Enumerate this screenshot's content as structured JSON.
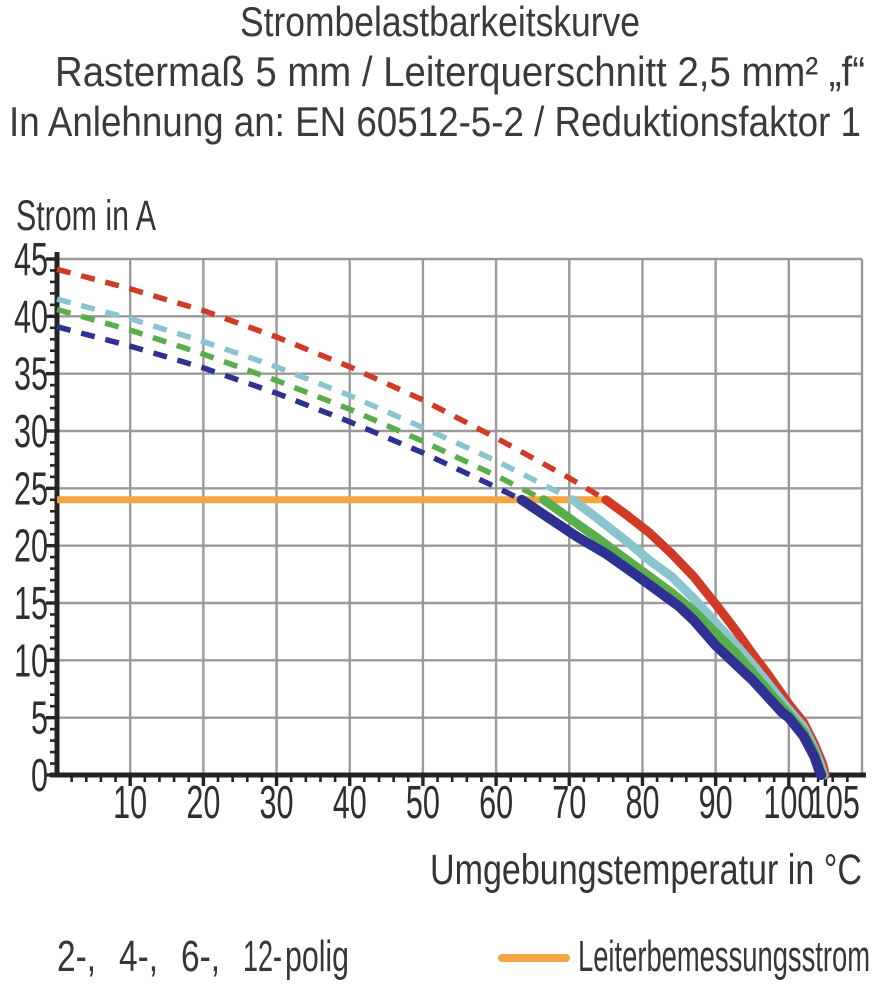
{
  "title": {
    "line1": "Strombelastbarkeitskurve",
    "line2": "Rastermaß 5 mm / Leiterquerschnitt 2,5 mm² „f“",
    "line3": "In Anlehnung an: EN 60512-5-2 / Reduktionsfaktor 1"
  },
  "chart_data": {
    "type": "line",
    "title": "Strombelastbarkeitskurve",
    "xlabel": "Umgebungstemperatur in °C",
    "ylabel": "Strom in A",
    "xlim": [
      0,
      110
    ],
    "ylim": [
      0,
      45
    ],
    "x_tick_labels": [
      10,
      20,
      30,
      40,
      50,
      60,
      70,
      80,
      90,
      100,
      105
    ],
    "y_tick_labels": [
      0,
      5,
      10,
      15,
      20,
      25,
      30,
      35,
      40,
      45
    ],
    "grid": "on",
    "grid_step": {
      "x": 10,
      "y": 5
    },
    "minor_tick_step": {
      "x": 2,
      "y": 1
    },
    "colors": {
      "grid": "#9a9a9a",
      "axis": "#242424",
      "tick_text": "#2b2b2b"
    },
    "rated_current": {
      "label": "Leiterbemessungsstrom",
      "value_a": 24,
      "x_start": 0,
      "x_end": 75,
      "color": "#f4a440"
    },
    "series": [
      {
        "name": "2-polig",
        "color": "#d23a28",
        "dashed": [
          [
            0,
            44.1
          ],
          [
            10,
            42.4
          ],
          [
            20,
            40.5
          ],
          [
            30,
            38.2
          ],
          [
            40,
            35.6
          ],
          [
            50,
            32.7
          ],
          [
            60,
            29.4
          ],
          [
            70,
            25.9
          ],
          [
            75,
            24
          ]
        ],
        "solid": [
          [
            75,
            24
          ],
          [
            78,
            22.6
          ],
          [
            81,
            21.1
          ],
          [
            84,
            19.3
          ],
          [
            87,
            17.3
          ],
          [
            90,
            14.9
          ],
          [
            93,
            12.4
          ],
          [
            95,
            10.6
          ],
          [
            97,
            8.9
          ],
          [
            99,
            7.1
          ],
          [
            100,
            6.2
          ],
          [
            102,
            4.6
          ],
          [
            103.5,
            2.7
          ],
          [
            104.6,
            1.0
          ],
          [
            105,
            0
          ]
        ]
      },
      {
        "name": "4-polig",
        "color": "#8ac4cd",
        "dashed": [
          [
            0,
            41.5
          ],
          [
            10,
            39.8
          ],
          [
            20,
            37.8
          ],
          [
            30,
            35.6
          ],
          [
            40,
            33.1
          ],
          [
            50,
            30.3
          ],
          [
            60,
            27.4
          ],
          [
            65,
            25.8
          ],
          [
            70.5,
            24
          ]
        ],
        "solid": [
          [
            70.5,
            24
          ],
          [
            74,
            22.3
          ],
          [
            78,
            20.3
          ],
          [
            81,
            18.7
          ],
          [
            84,
            17.3
          ],
          [
            87,
            15.4
          ],
          [
            90,
            13.3
          ],
          [
            93,
            11.2
          ],
          [
            95,
            9.7
          ],
          [
            97,
            8.1
          ],
          [
            99,
            6.5
          ],
          [
            100,
            5.7
          ],
          [
            102,
            4.2
          ],
          [
            103.5,
            2.3
          ],
          [
            104.4,
            0.8
          ],
          [
            104.8,
            0
          ]
        ]
      },
      {
        "name": "6-polig",
        "color": "#58ae4b",
        "dashed": [
          [
            0,
            40.6
          ],
          [
            10,
            38.8
          ],
          [
            20,
            36.7
          ],
          [
            30,
            34.4
          ],
          [
            40,
            31.9
          ],
          [
            50,
            29.1
          ],
          [
            60,
            26.1
          ],
          [
            66.5,
            24
          ]
        ],
        "solid": [
          [
            66.5,
            24
          ],
          [
            70,
            22.4
          ],
          [
            74,
            20.6
          ],
          [
            78,
            18.7
          ],
          [
            81,
            17.3
          ],
          [
            84,
            15.9
          ],
          [
            87,
            14.3
          ],
          [
            90,
            12.4
          ],
          [
            93,
            10.5
          ],
          [
            95,
            9.0
          ],
          [
            97,
            7.5
          ],
          [
            99,
            6.0
          ],
          [
            100,
            5.3
          ],
          [
            102,
            3.8
          ],
          [
            103.5,
            2.0
          ],
          [
            104.2,
            0.6
          ],
          [
            104.6,
            0
          ]
        ]
      },
      {
        "name": "12-polig",
        "color": "#2e3192",
        "dashed": [
          [
            0,
            39.1
          ],
          [
            10,
            37.4
          ],
          [
            20,
            35.5
          ],
          [
            30,
            33.3
          ],
          [
            40,
            30.8
          ],
          [
            50,
            28.1
          ],
          [
            60,
            25.1
          ],
          [
            63.5,
            24
          ]
        ],
        "solid": [
          [
            63.5,
            24
          ],
          [
            67,
            22.5
          ],
          [
            71,
            20.8
          ],
          [
            75,
            19.3
          ],
          [
            79,
            17.5
          ],
          [
            82,
            16.1
          ],
          [
            85,
            14.7
          ],
          [
            87,
            13.5
          ],
          [
            90,
            11.3
          ],
          [
            93,
            9.5
          ],
          [
            95,
            8.3
          ],
          [
            97,
            6.9
          ],
          [
            99,
            5.5
          ],
          [
            100,
            5.0
          ],
          [
            102,
            3.4
          ],
          [
            103.5,
            1.6
          ],
          [
            104.1,
            0.5
          ],
          [
            104.4,
            0
          ]
        ]
      }
    ]
  },
  "legend": {
    "poles": [
      {
        "label": "2-,",
        "color": "#c94a3e"
      },
      {
        "label": "4-,",
        "color": "#8ec3cc"
      },
      {
        "label": "6-,",
        "color": "#6ab75c"
      },
      {
        "label": "12-",
        "color": "#3c64ad"
      }
    ],
    "suffix": "polig",
    "rated_label": "Leiterbemessungsstrom",
    "rated_color": "#f4a440",
    "text_color": "#35353b"
  }
}
